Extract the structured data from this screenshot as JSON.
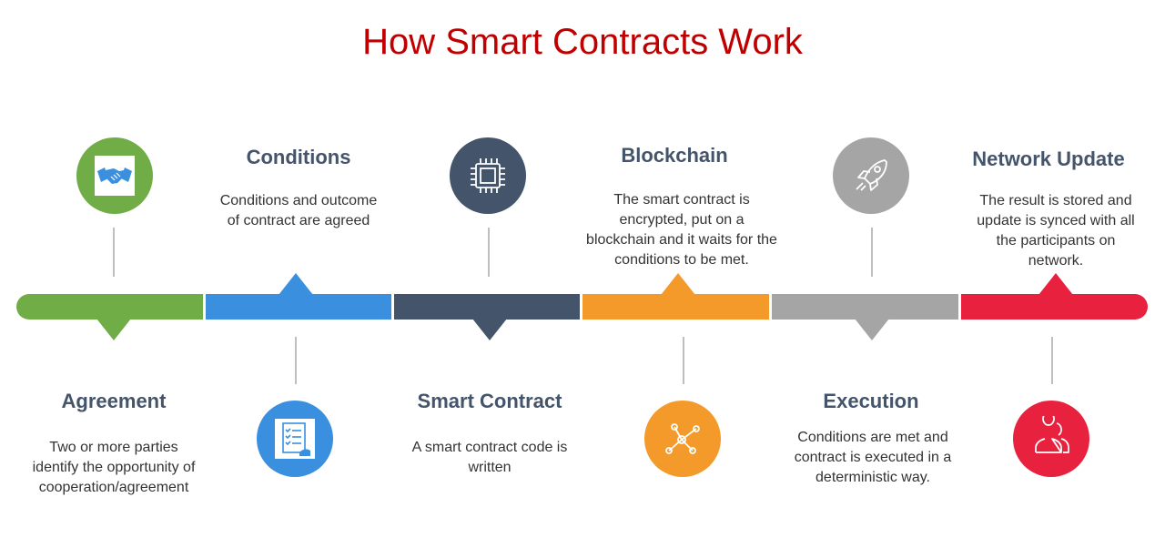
{
  "title": "How Smart Contracts Work",
  "steps": [
    {
      "heading": "Agreement",
      "description": "Two or more parties\nidentify the opportunity of\ncooperation/agreement",
      "icon": "handshake-icon",
      "color": "#70ad47"
    },
    {
      "heading": "Conditions",
      "description": "Conditions and outcome\nof contract are agreed",
      "icon": "checklist-icon",
      "color": "#3a8fde"
    },
    {
      "heading": "Smart Contract",
      "description": "A smart contract code is\nwritten",
      "icon": "chip-icon",
      "color": "#44546a"
    },
    {
      "heading": "Blockchain",
      "description": "The smart contract is\nencrypted, put on a\nblockchain and it waits for the\nconditions to be met.",
      "icon": "network-nodes-icon",
      "color": "#f39a2a"
    },
    {
      "heading": "Execution",
      "description": "Conditions are met and\ncontract is executed in a\ndeterministic way.",
      "icon": "rocket-icon",
      "color": "#a5a5a5"
    },
    {
      "heading": "Network Update",
      "description": "The result is stored and\nupdate is synced with all\nthe participants on\nnetwork.",
      "icon": "users-icon",
      "color": "#e8213f"
    }
  ]
}
